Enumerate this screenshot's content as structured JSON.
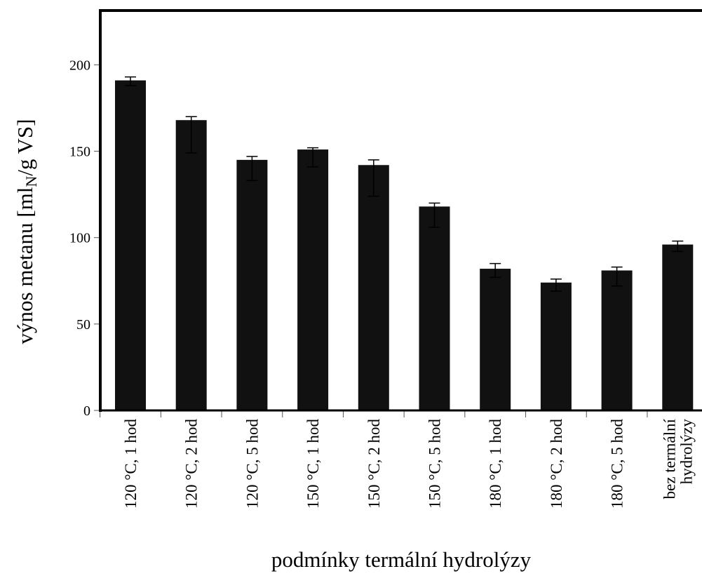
{
  "chart_data": {
    "type": "bar",
    "xlabel": "podmínky termální hydrolýzy",
    "ylabel": {
      "prefix": "výnos metanu [ml",
      "subscript": "N",
      "suffix": "/g VS]"
    },
    "ylim": [
      0,
      230
    ],
    "yticks": [
      0,
      50,
      100,
      150,
      200
    ],
    "grid": false,
    "bar_color": "#111111",
    "categories": [
      [
        "120 °C, 1 hod"
      ],
      [
        "120 °C, 2 hod"
      ],
      [
        "120 °C, 5 hod"
      ],
      [
        "150 °C, 1 hod"
      ],
      [
        "150 °C, 2 hod"
      ],
      [
        "150 °C, 5 hod"
      ],
      [
        "180 °C, 1 hod"
      ],
      [
        "180 °C, 2 hod"
      ],
      [
        "180 °C, 5 hod"
      ],
      [
        "bez termální",
        "hydrolýzy"
      ]
    ],
    "values": [
      191,
      168,
      145,
      151,
      142,
      118,
      82,
      74,
      81,
      96
    ],
    "errors": [
      [
        188,
        193
      ],
      [
        149,
        170
      ],
      [
        133,
        147
      ],
      [
        141,
        152
      ],
      [
        124,
        145
      ],
      [
        106,
        120
      ],
      [
        77,
        85
      ],
      [
        69,
        76
      ],
      [
        72,
        83
      ],
      [
        92,
        98
      ]
    ]
  }
}
